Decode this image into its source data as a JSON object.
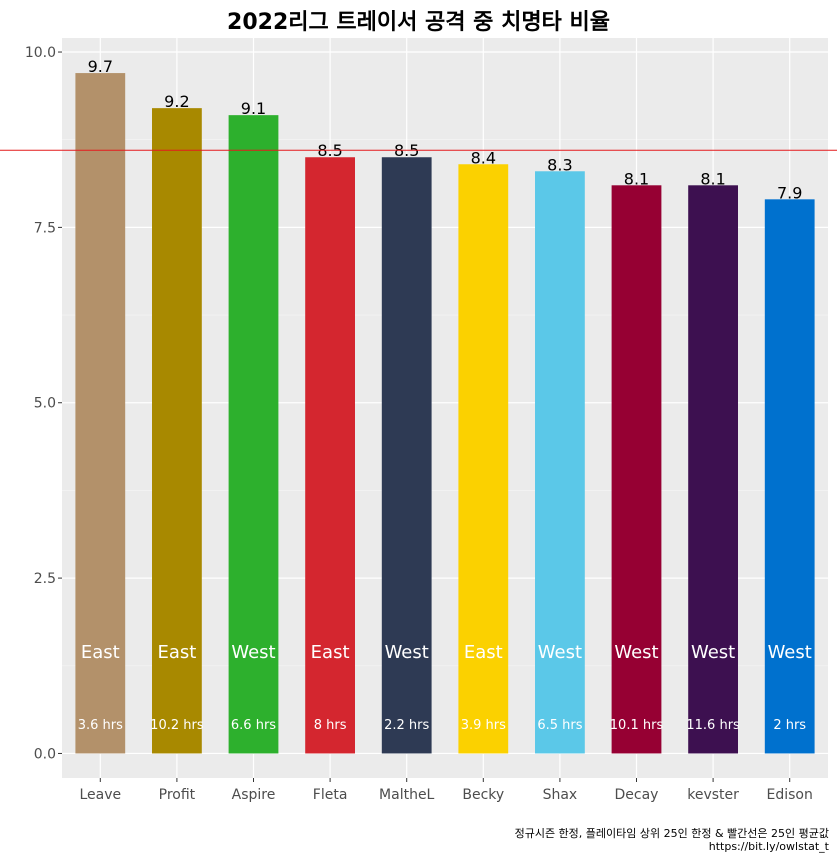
{
  "chart_data": {
    "type": "bar",
    "title": "2022리그 트레이서 공격 중 치명타 비율",
    "xlabel": "",
    "ylabel": "",
    "ylim": [
      -0.35,
      10.2
    ],
    "yticks": [
      "0.0",
      "2.5",
      "5.0",
      "7.5",
      "10.0"
    ],
    "grid": true,
    "reference_line": {
      "value": 8.6,
      "color": "#e41a1c"
    },
    "categories": [
      "Leave",
      "Profit",
      "Aspire",
      "Fleta",
      "MaltheL",
      "Becky",
      "Shax",
      "Decay",
      "kevster",
      "Edison"
    ],
    "values": [
      9.7,
      9.2,
      9.1,
      8.5,
      8.5,
      8.4,
      8.3,
      8.1,
      8.1,
      7.9
    ],
    "value_labels": [
      "9.7",
      "9.2",
      "9.1",
      "8.5",
      "8.5",
      "8.4",
      "8.3",
      "8.1",
      "8.1",
      "7.9"
    ],
    "division_labels": [
      "East",
      "East",
      "West",
      "East",
      "West",
      "East",
      "West",
      "West",
      "West",
      "West"
    ],
    "hours_labels": [
      "3.6 hrs",
      "10.2 hrs",
      "6.6 hrs",
      "8 hrs",
      "2.2 hrs",
      "3.9 hrs",
      "6.5 hrs",
      "10.1 hrs",
      "11.6 hrs",
      "2 hrs"
    ],
    "colors": [
      "#b3916a",
      "#a88900",
      "#2db02d",
      "#d4262f",
      "#2e3a54",
      "#fbd100",
      "#5bc8e8",
      "#960033",
      "#3d1050",
      "#0071ce"
    ],
    "caption": [
      "정규시즌 한정, 플레이타임 상위 25인 한정 & 빨간선은 25인 평균값",
      "https://bit.ly/owlstat_t"
    ]
  }
}
